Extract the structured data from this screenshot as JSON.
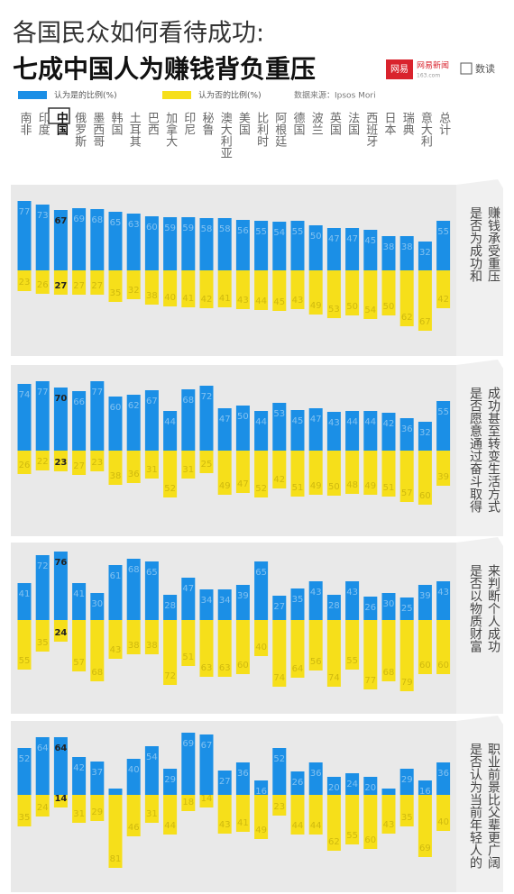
{
  "header": {
    "title": "各国民众如何看待成功:",
    "subtitle": "七成中国人为赚钱背负重压",
    "logo_badge": "网易",
    "logo_news": "网易新闻",
    "logo_url": "163.com",
    "logo_shudu": "数读",
    "source": "数据来源：Ipsos Mori"
  },
  "chart_data": [
    {
      "type": "bar",
      "title": [
        "是否为成功和",
        "赚钱承受重压"
      ],
      "categories": [
        "南非",
        "印度",
        "中国",
        "俄罗斯",
        "墨西哥",
        "韩国",
        "土耳其",
        "巴西",
        "加拿大",
        "印尼",
        "秘鲁",
        "澳大利亚",
        "美国",
        "比利时",
        "阿根廷",
        "德国",
        "波兰",
        "英国",
        "法国",
        "西班牙",
        "日本",
        "瑞典",
        "意大利",
        "总计"
      ],
      "series": [
        {
          "name": "认为是的比例(%)",
          "color": "#1b8fe6",
          "values": [
            77,
            73,
            67,
            69,
            68,
            65,
            63,
            60,
            59,
            59,
            58,
            58,
            56,
            55,
            54,
            55,
            50,
            47,
            47,
            45,
            38,
            38,
            32,
            55
          ]
        },
        {
          "name": "认为否的比例(%)",
          "color": "#f6df1a",
          "values": [
            23,
            26,
            27,
            27,
            27,
            35,
            32,
            38,
            40,
            41,
            42,
            41,
            43,
            44,
            45,
            43,
            49,
            53,
            50,
            54,
            50,
            62,
            67,
            42
          ]
        }
      ]
    },
    {
      "type": "bar",
      "title": [
        "是否愿意通过奋斗取得",
        "成功甚至转变生活方式"
      ],
      "series": [
        {
          "color": "#1b8fe6",
          "values": [
            74,
            77,
            70,
            66,
            77,
            60,
            62,
            67,
            44,
            68,
            72,
            47,
            50,
            44,
            53,
            45,
            47,
            43,
            44,
            44,
            42,
            36,
            32,
            55
          ]
        },
        {
          "color": "#f6df1a",
          "values": [
            26,
            22,
            23,
            27,
            23,
            38,
            36,
            31,
            52,
            31,
            25,
            49,
            47,
            52,
            42,
            51,
            49,
            50,
            48,
            49,
            51,
            57,
            60,
            39
          ]
        }
      ]
    },
    {
      "type": "bar",
      "title": [
        "是否以物质财富",
        "来判断个人成功"
      ],
      "series": [
        {
          "color": "#1b8fe6",
          "values": [
            41,
            72,
            76,
            41,
            30,
            61,
            68,
            65,
            28,
            47,
            34,
            34,
            39,
            65,
            27,
            35,
            43,
            28,
            43,
            26,
            30,
            25,
            39,
            43
          ]
        },
        {
          "color": "#f6df1a",
          "values": [
            55,
            35,
            24,
            57,
            68,
            43,
            38,
            38,
            72,
            51,
            63,
            63,
            60,
            40,
            74,
            64,
            56,
            74,
            55,
            77,
            68,
            79,
            60,
            60
          ]
        }
      ]
    },
    {
      "type": "bar",
      "title": [
        "是否认为当前年轻人的",
        "职业前景比父辈更广阔"
      ],
      "series": [
        {
          "color": "#1b8fe6",
          "values": [
            52,
            64,
            64,
            42,
            37,
            7,
            40,
            54,
            29,
            69,
            67,
            27,
            36,
            16,
            52,
            26,
            36,
            20,
            24,
            20,
            7,
            29,
            16,
            36
          ]
        },
        {
          "color": "#f6df1a",
          "values": [
            35,
            24,
            14,
            31,
            29,
            81,
            46,
            31,
            44,
            18,
            14,
            43,
            41,
            49,
            23,
            44,
            44,
            62,
            55,
            60,
            43,
            35,
            69,
            40
          ]
        }
      ]
    }
  ]
}
